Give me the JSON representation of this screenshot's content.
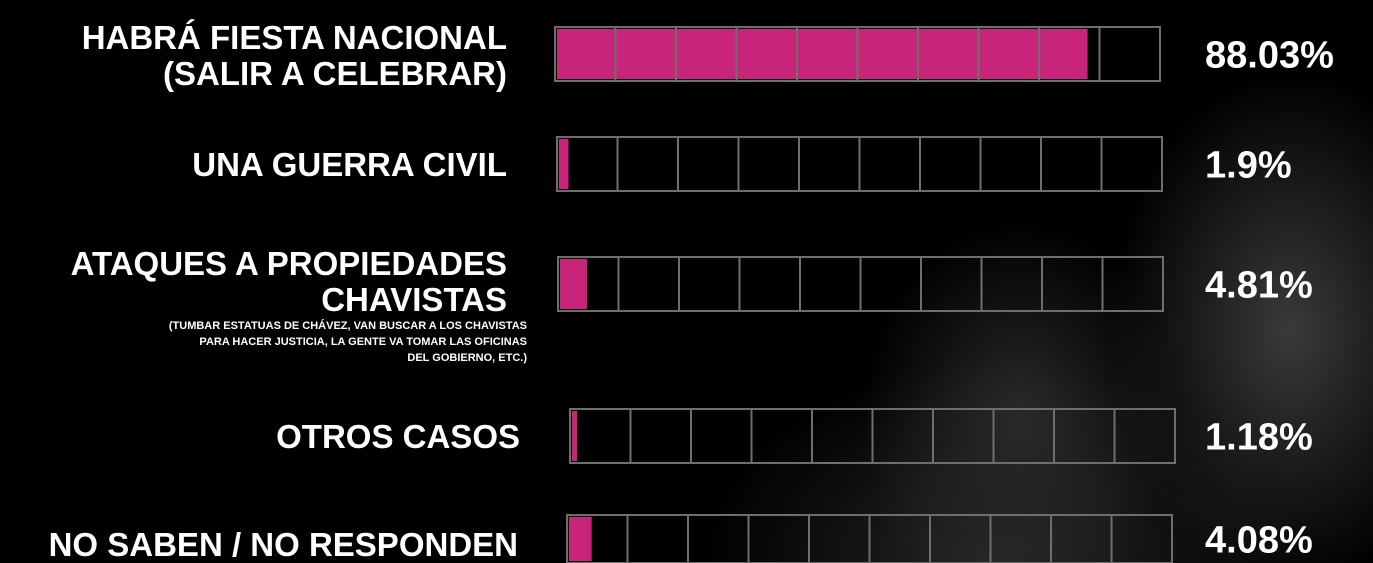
{
  "chart_data": {
    "type": "bar",
    "categories": [
      "HABRÁ FIESTA NACIONAL\n(SALIR A CELEBRAR)",
      "UNA GUERRA CIVIL",
      "ATAQUES A PROPIEDADES\nCHAVISTAS",
      "OTROS CASOS",
      "NO SABEN / NO RESPONDEN"
    ],
    "values": [
      88.03,
      1.9,
      4.81,
      1.18,
      4.08
    ],
    "value_labels": [
      "88.03%",
      "1.9%",
      "4.81%",
      "1.18%",
      "4.08%"
    ],
    "annotations": [
      {
        "category": 2,
        "text": "(TUMBAR ESTATUAS DE CHÁVEZ, VAN BUSCAR A LOS CHAVISTAS\nPARA HACER JUSTICIA, LA GENTE VA TOMAR LAS OFICINAS\nDEL GOBIERNO, ETC.)"
      }
    ],
    "color": "#c8257a",
    "xlim": [
      0,
      100
    ],
    "xticks": [
      0,
      10,
      20,
      30,
      40,
      50,
      60,
      70,
      80,
      90,
      100
    ],
    "grid": true
  }
}
